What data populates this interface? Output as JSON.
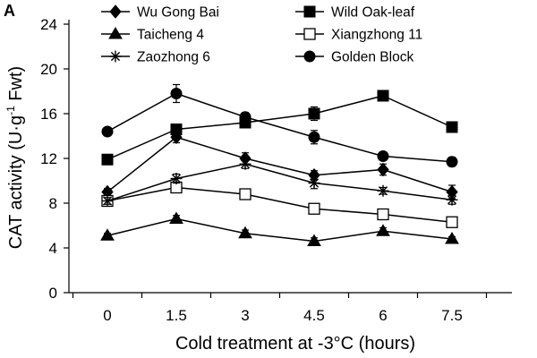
{
  "chart_data": {
    "type": "line",
    "panel_label": "A",
    "title": "",
    "xlabel": "Cold treatment at -3°C (hours)",
    "ylabel_main": "CAT activity (U·g",
    "ylabel_sup": "-1",
    "ylabel_end": " Fwt)",
    "x": [
      0,
      1.5,
      3,
      4.5,
      6,
      7.5
    ],
    "x_tick_labels": [
      "0",
      "1.5",
      "3",
      "4.5",
      "6",
      "7.5"
    ],
    "ylim": [
      0,
      24
    ],
    "y_ticks": [
      0,
      4,
      8,
      12,
      16,
      20,
      24
    ],
    "y_tick_labels": [
      "0",
      "4",
      "8",
      "12",
      "16",
      "20",
      "24"
    ],
    "grid": false,
    "legend_position": "top",
    "line_color": "#000000",
    "series": [
      {
        "name": "Wu Gong Bai",
        "marker": "diamond",
        "values": [
          9.0,
          13.9,
          12.0,
          10.5,
          11.0,
          9.0
        ],
        "errors": [
          0.3,
          0.5,
          0.5,
          0.4,
          0.5,
          0.6
        ]
      },
      {
        "name": "Wild Oak-leaf",
        "marker": "square",
        "values": [
          11.9,
          14.6,
          15.2,
          16.0,
          17.6,
          14.8
        ],
        "errors": [
          0.3,
          0.3,
          0.4,
          0.6,
          0.3,
          0.3
        ]
      },
      {
        "name": "Taicheng 4",
        "marker": "triangle",
        "values": [
          5.1,
          6.6,
          5.3,
          4.6,
          5.5,
          4.8
        ],
        "errors": [
          0.2,
          0.3,
          0.3,
          0.3,
          0.3,
          0.2
        ]
      },
      {
        "name": "Xiangzhong 11",
        "marker": "open-square",
        "values": [
          8.2,
          9.4,
          8.8,
          7.5,
          7.0,
          6.3
        ],
        "errors": [
          0.3,
          0.3,
          0.3,
          0.3,
          0.3,
          0.3
        ]
      },
      {
        "name": "Zaozhong 6",
        "marker": "star",
        "values": [
          8.2,
          10.2,
          11.5,
          9.8,
          9.1,
          8.3
        ],
        "errors": [
          0.3,
          0.4,
          0.4,
          0.5,
          0.3,
          0.4
        ]
      },
      {
        "name": "Golden Block",
        "marker": "circle",
        "values": [
          14.4,
          17.8,
          15.7,
          13.9,
          12.2,
          11.7
        ],
        "errors": [
          0.3,
          0.8,
          0.4,
          0.6,
          0.3,
          0.4
        ]
      }
    ]
  }
}
